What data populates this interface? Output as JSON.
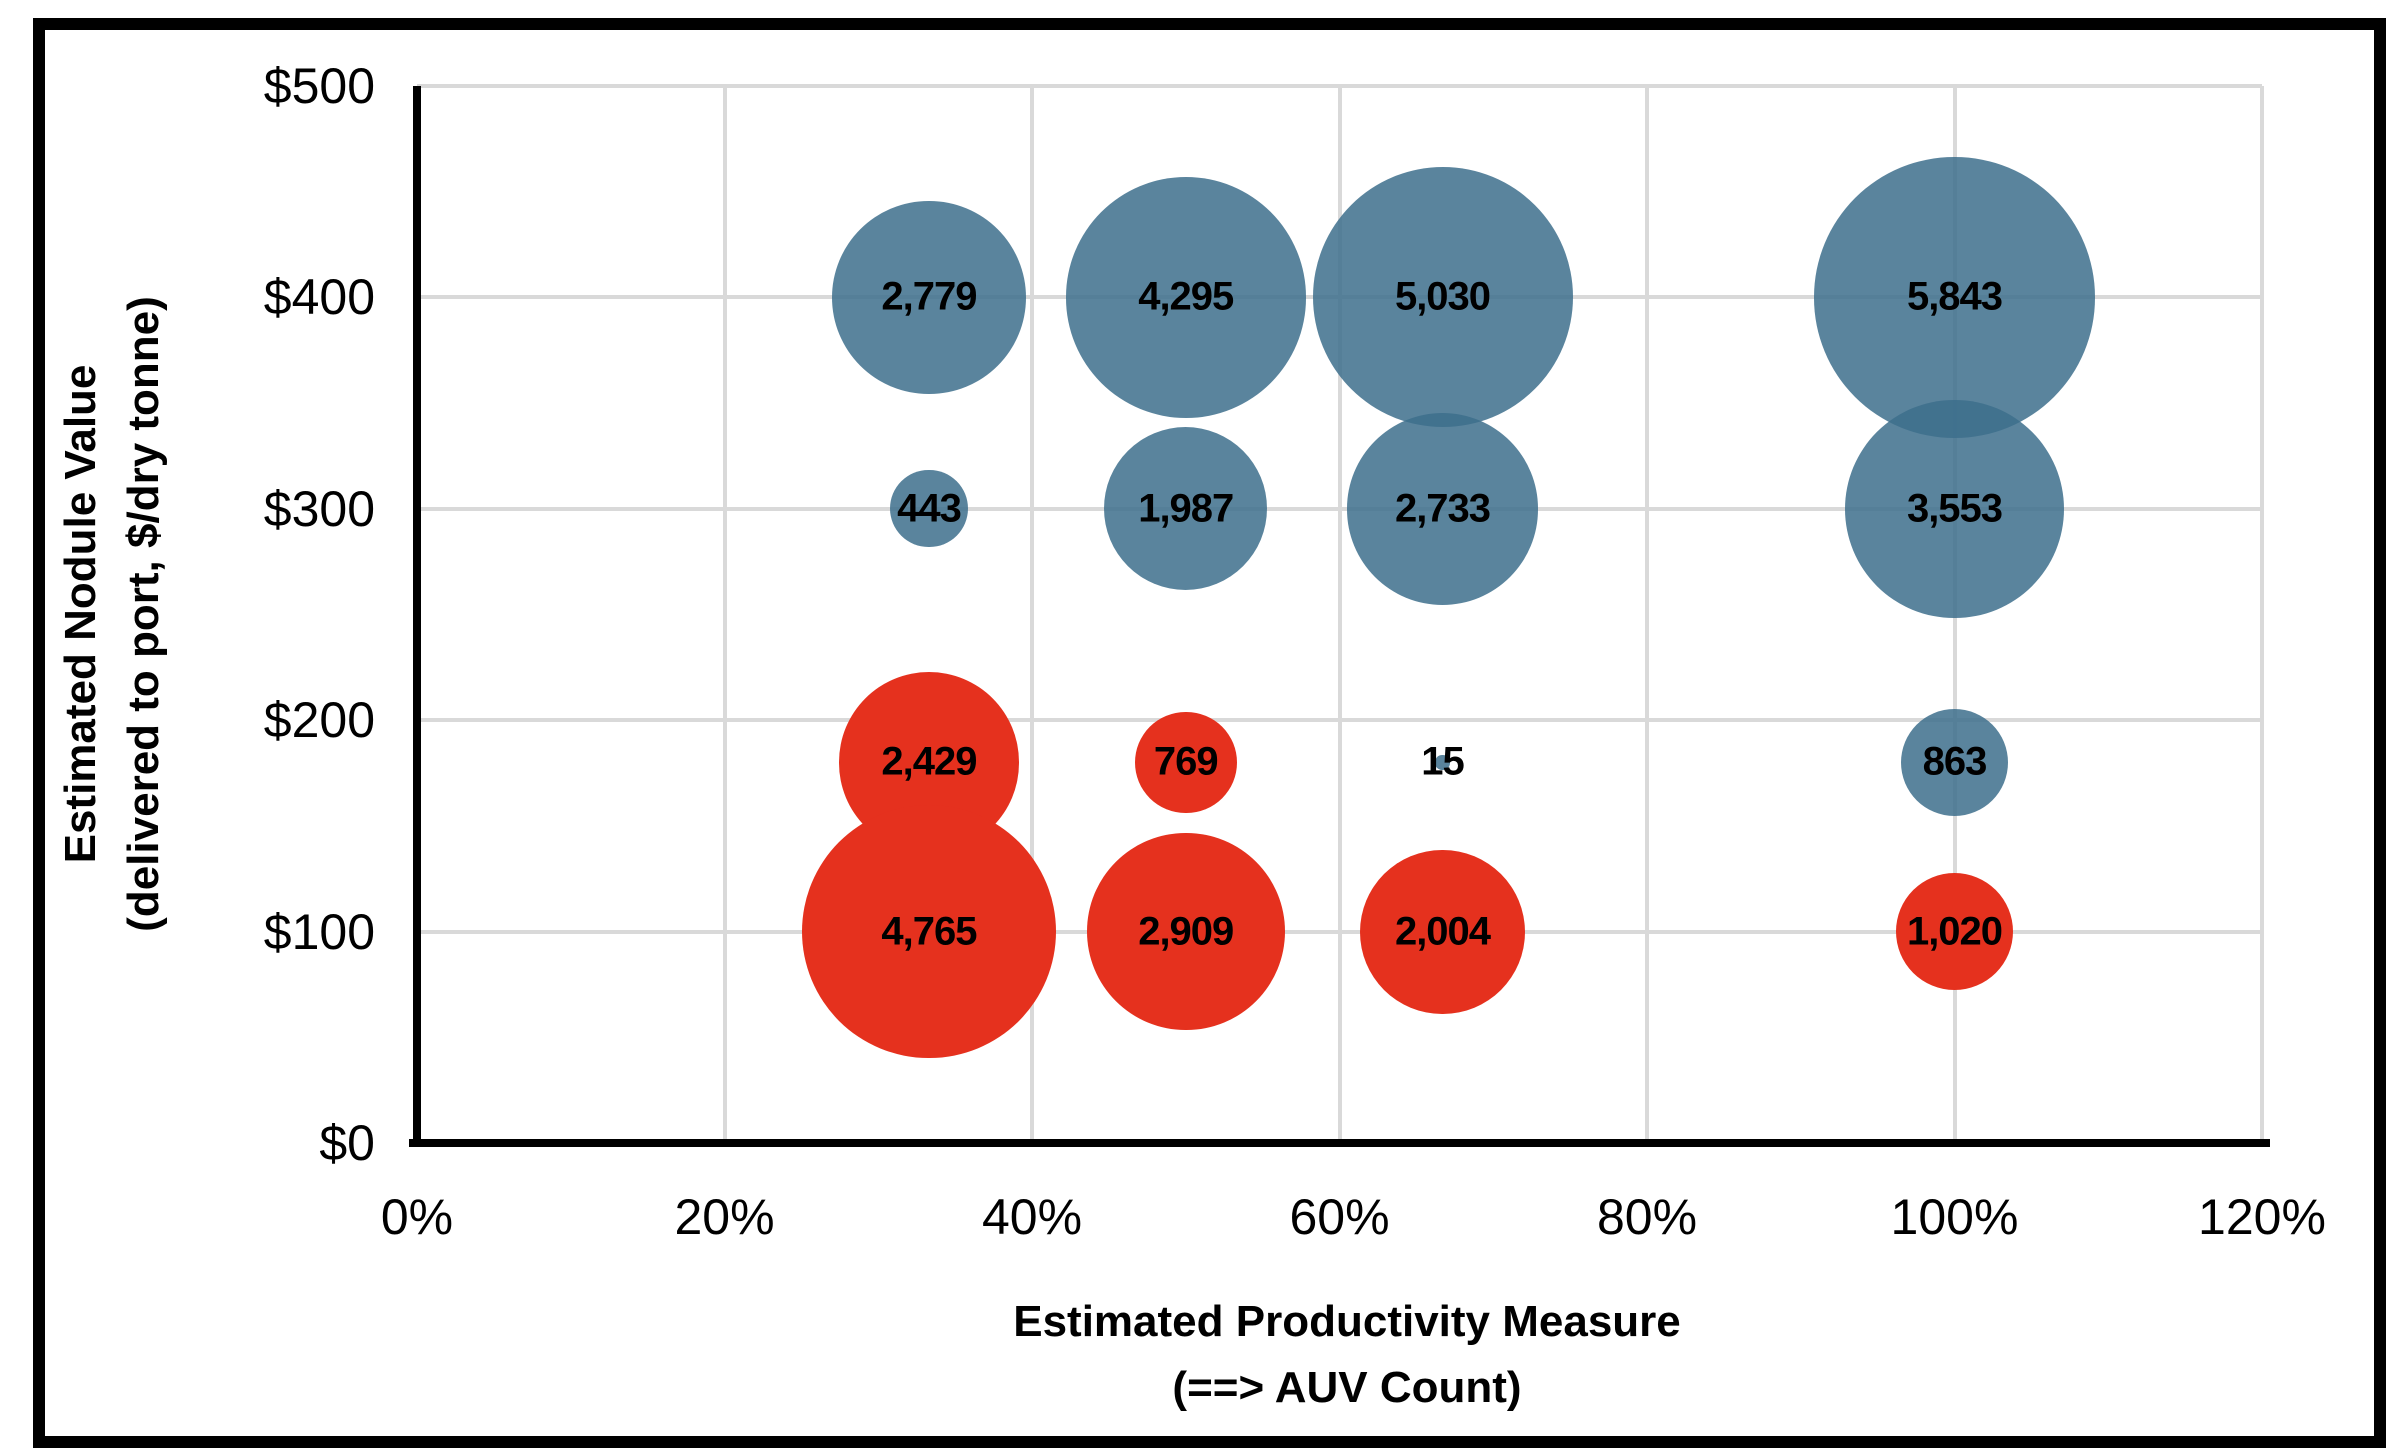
{
  "window": {
    "background_color": "#FFFFFF",
    "frame_color": "#000000"
  },
  "chart_data": {
    "type": "bubble",
    "title": "",
    "xlabel_lines": [
      "Estimated Productivity Measure",
      "(==> AUV Count)"
    ],
    "ylabel_lines": [
      "Estimated Nodule Value",
      "(delivered to port, $/dry tonne)"
    ],
    "xlim": [
      0,
      120
    ],
    "ylim": [
      0,
      500
    ],
    "x_ticks": [
      {
        "value": 0,
        "label": "0%"
      },
      {
        "value": 20,
        "label": "20%"
      },
      {
        "value": 40,
        "label": "40%"
      },
      {
        "value": 60,
        "label": "60%"
      },
      {
        "value": 80,
        "label": "80%"
      },
      {
        "value": 100,
        "label": "100%"
      },
      {
        "value": 120,
        "label": "120%"
      }
    ],
    "y_ticks": [
      {
        "value": 0,
        "label": "$0"
      },
      {
        "value": 100,
        "label": "$100"
      },
      {
        "value": 200,
        "label": "$200"
      },
      {
        "value": 300,
        "label": "$300"
      },
      {
        "value": 400,
        "label": "$400"
      },
      {
        "value": 500,
        "label": "$500"
      }
    ],
    "grid": true,
    "gridline_color": "#D9D9D9",
    "axis_color": "#000000",
    "data_label_color": "#000000",
    "series": [
      {
        "name": "blue-bubbles",
        "color": "#3D6E8C",
        "opacity": 0.85,
        "points": [
          {
            "x": 33.3,
            "y": 400,
            "size": 2779,
            "label": "2,779"
          },
          {
            "x": 50,
            "y": 400,
            "size": 4295,
            "label": "4,295"
          },
          {
            "x": 66.7,
            "y": 400,
            "size": 5030,
            "label": "5,030"
          },
          {
            "x": 100,
            "y": 400,
            "size": 5843,
            "label": "5,843"
          },
          {
            "x": 33.3,
            "y": 300,
            "size": 443,
            "label": "443"
          },
          {
            "x": 50,
            "y": 300,
            "size": 1987,
            "label": "1,987"
          },
          {
            "x": 66.7,
            "y": 300,
            "size": 2733,
            "label": "2,733"
          },
          {
            "x": 100,
            "y": 300,
            "size": 3553,
            "label": "3,553"
          },
          {
            "x": 66.7,
            "y": 180,
            "size": 15,
            "label": "15"
          },
          {
            "x": 100,
            "y": 180,
            "size": 863,
            "label": "863"
          }
        ]
      },
      {
        "name": "red-bubbles",
        "color": "#E5311E",
        "opacity": 1,
        "points": [
          {
            "x": 33.3,
            "y": 180,
            "size": 2429,
            "label": "2,429"
          },
          {
            "x": 50,
            "y": 180,
            "size": 769,
            "label": "769"
          },
          {
            "x": 33.3,
            "y": 100,
            "size": 4765,
            "label": "4,765"
          },
          {
            "x": 50,
            "y": 100,
            "size": 2909,
            "label": "2,909"
          },
          {
            "x": 66.7,
            "y": 100,
            "size": 2004,
            "label": "2,004"
          },
          {
            "x": 100,
            "y": 100,
            "size": 1020,
            "label": "1,020"
          }
        ]
      }
    ]
  }
}
